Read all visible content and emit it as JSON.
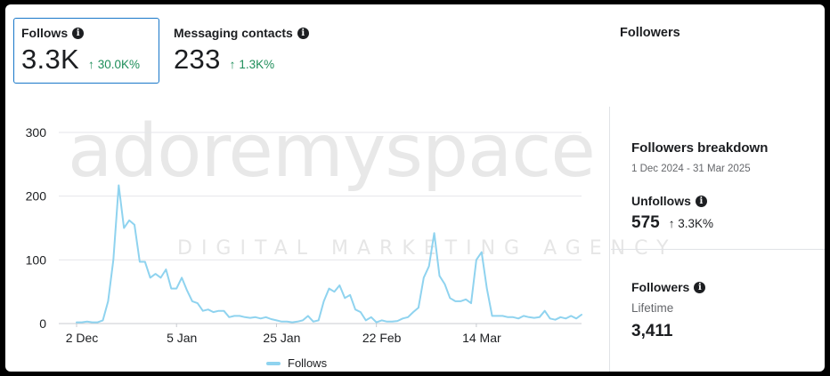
{
  "cards": [
    {
      "label": "Follows",
      "value": "3.3K",
      "change": "30.0K%",
      "selected": true
    },
    {
      "label": "Messaging contacts",
      "value": "233",
      "change": "1.3K%",
      "selected": false
    }
  ],
  "right_title": "Followers",
  "panel": {
    "title": "Followers breakdown",
    "date_range": "1 Dec 2024 - 31 Mar 2025",
    "unfollows": {
      "label": "Unfollows",
      "value": "575",
      "change": "3.3K%"
    },
    "followers": {
      "label": "Followers",
      "sublabel": "Lifetime",
      "value": "3,411"
    }
  },
  "watermark": {
    "main": "adoremyspace",
    "sub": "DIGITAL MARKETING AGENCY"
  },
  "icons": {
    "info": "info-icon",
    "arrow": "arrow-up-icon"
  },
  "colors": {
    "accent": "#1877c9",
    "positive": "#1e8e5a",
    "line": "#8fd3ef"
  },
  "chart_data": {
    "type": "line",
    "title": "",
    "xlabel": "",
    "ylabel": "",
    "ylim": [
      0,
      300
    ],
    "yticks": [
      0,
      100,
      200,
      300
    ],
    "x_tick_labels": [
      "2 Dec",
      "5 Jan",
      "25 Jan",
      "22 Feb",
      "14 Mar"
    ],
    "x_tick_index": [
      0,
      19,
      38,
      57,
      76
    ],
    "legend": "bottom",
    "grid": true,
    "series": [
      {
        "name": "Follows",
        "color": "#8fd3ef",
        "values": [
          2,
          2,
          3,
          2,
          2,
          5,
          35,
          100,
          217,
          150,
          162,
          155,
          97,
          97,
          72,
          78,
          72,
          85,
          55,
          55,
          72,
          52,
          35,
          32,
          20,
          22,
          18,
          20,
          20,
          10,
          12,
          12,
          10,
          9,
          10,
          8,
          10,
          7,
          5,
          3,
          3,
          2,
          3,
          5,
          12,
          3,
          5,
          35,
          55,
          50,
          60,
          40,
          45,
          22,
          18,
          5,
          10,
          2,
          5,
          3,
          3,
          4,
          8,
          10,
          18,
          25,
          72,
          90,
          142,
          75,
          62,
          40,
          35,
          35,
          38,
          32,
          100,
          112,
          55,
          12,
          12,
          12,
          10,
          10,
          8,
          12,
          10,
          9,
          10,
          20,
          8,
          6,
          10,
          8,
          12,
          8,
          14
        ]
      }
    ]
  }
}
